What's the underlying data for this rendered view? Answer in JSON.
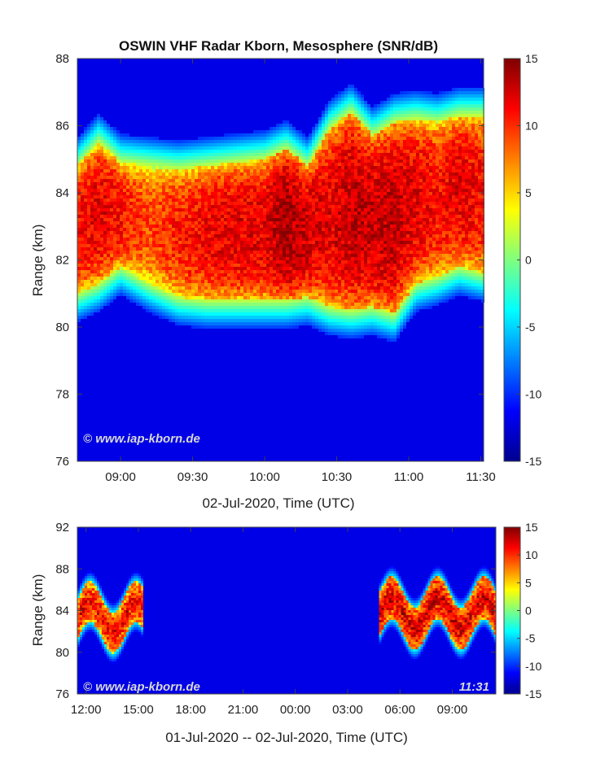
{
  "chart_data": [
    {
      "type": "heatmap",
      "title": "OSWIN VHF Radar Kborn, Mesosphere (SNR/dB)",
      "xlabel": "02-Jul-2020, Time (UTC)",
      "ylabel": "Range (km)",
      "x_ticks": [
        "09:00",
        "09:30",
        "10:00",
        "10:30",
        "11:00",
        "11:30"
      ],
      "y_ticks": [
        "76",
        "78",
        "80",
        "82",
        "84",
        "86",
        "88"
      ],
      "xlim_hours": [
        8.7,
        11.52
      ],
      "data_end_hours": 11.52,
      "ylim": [
        76,
        88
      ],
      "colorbar": {
        "ticks": [
          "15",
          "10",
          "5",
          "0",
          "-5",
          "-10",
          "-15"
        ],
        "range": [
          -15,
          15
        ]
      },
      "watermark": "© www.iap-kborn.de",
      "echo_layer": {
        "time_hours": [
          8.7,
          8.85,
          9.0,
          9.2,
          9.4,
          9.6,
          9.8,
          10.0,
          10.15,
          10.3,
          10.45,
          10.6,
          10.75,
          10.9,
          11.05,
          11.2,
          11.35,
          11.52
        ],
        "bottom_km": [
          81.0,
          81.3,
          81.8,
          81.3,
          80.9,
          80.8,
          80.8,
          80.8,
          80.8,
          80.9,
          80.6,
          80.5,
          80.6,
          80.4,
          81.3,
          81.5,
          81.8,
          81.6
        ],
        "top_km": [
          84.8,
          85.5,
          84.9,
          84.8,
          84.7,
          84.8,
          84.9,
          85.0,
          85.3,
          84.8,
          85.9,
          86.4,
          85.7,
          86.1,
          86.2,
          86.1,
          86.3,
          86.3
        ],
        "peak_db": [
          11.0,
          12.0,
          11.0,
          9.0,
          10.5,
          11.5,
          12.0,
          12.0,
          14.0,
          12.5,
          12.0,
          13.0,
          13.0,
          13.0,
          12.0,
          11.0,
          12.0,
          11.0
        ]
      }
    },
    {
      "type": "heatmap",
      "xlabel": "01-Jul-2020 -- 02-Jul-2020, Time (UTC)",
      "ylabel": "Range (km)",
      "x_ticks": [
        "12:00",
        "15:00",
        "18:00",
        "21:00",
        "00:00",
        "03:00",
        "06:00",
        "09:00"
      ],
      "y_ticks": [
        "76",
        "80",
        "84",
        "88",
        "92"
      ],
      "xlim_hours": [
        11.5,
        35.5
      ],
      "ylim": [
        76,
        92
      ],
      "colorbar": {
        "ticks": [
          "15",
          "10",
          "5",
          "0",
          "-5",
          "-10",
          "-15"
        ],
        "range": [
          -15,
          15
        ]
      },
      "watermark": "© www.iap-kborn.de",
      "timestamp": "11:31",
      "echo_segments": [
        {
          "start_hours": 11.5,
          "end_hours": 15.2,
          "bottom_km": 80.2,
          "top_km": 86.5,
          "peak_db": 12
        },
        {
          "start_hours": 28.8,
          "end_hours": 35.5,
          "bottom_km": 80.5,
          "top_km": 87.0,
          "peak_db": 13
        }
      ]
    }
  ]
}
